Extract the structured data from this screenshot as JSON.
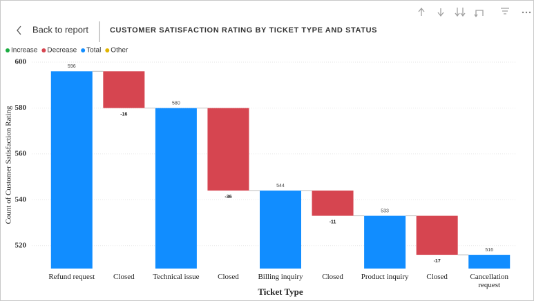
{
  "header": {
    "back": "Back to report"
  },
  "chart_data": {
    "type": "waterfall",
    "title": "CUSTOMER SATISFACTION RATING BY TICKET TYPE AND STATUS",
    "legend": [
      {
        "name": "Increase",
        "color": "#1aab40"
      },
      {
        "name": "Decrease",
        "color": "#d64550"
      },
      {
        "name": "Total",
        "color": "#118dff"
      },
      {
        "name": "Other",
        "color": "#e0b400"
      }
    ],
    "x_label": "Ticket Type",
    "y_label": "Count of Customer Satisfaction Rating",
    "categories": [
      "Refund request",
      "Closed",
      "Technical issue",
      "Closed",
      "Billing inquiry",
      "Closed",
      "Product inquiry",
      "Closed",
      "Cancellation request"
    ],
    "values": [
      596,
      -16,
      580,
      -36,
      544,
      -11,
      533,
      -17,
      516
    ],
    "ylim": [
      510,
      600
    ],
    "yticks": [
      520,
      540,
      560,
      580,
      600
    ],
    "grid": true
  }
}
